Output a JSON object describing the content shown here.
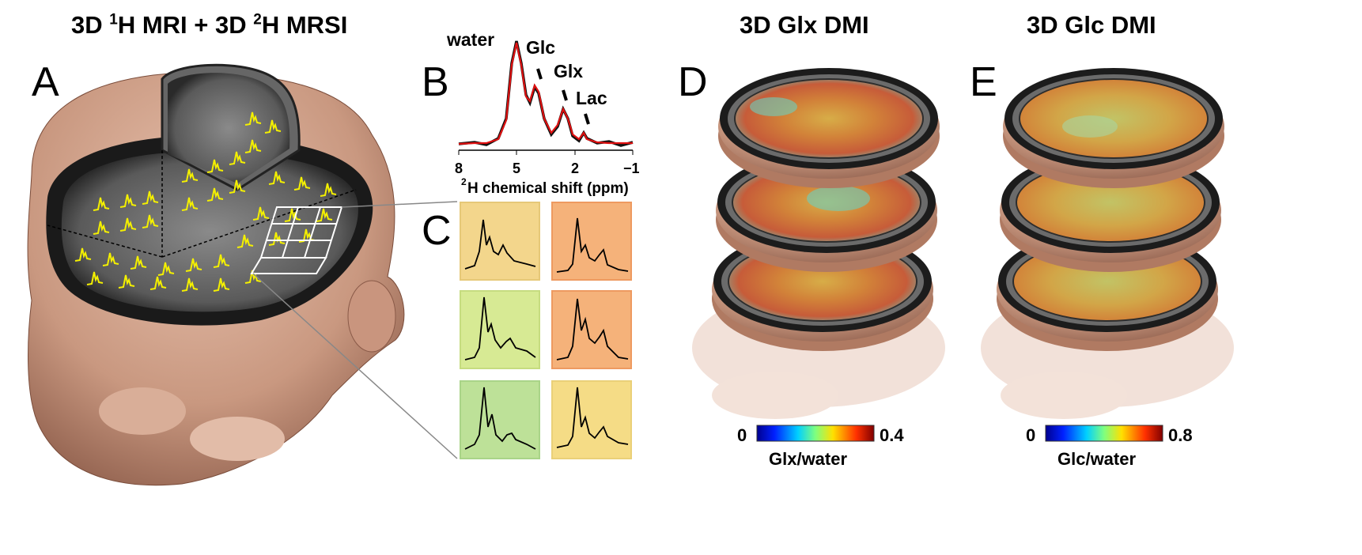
{
  "titles": {
    "a_prefix": "3D ",
    "a_sup1": "1",
    "a_mid": "H MRI + 3D ",
    "a_sup2": "2",
    "a_suffix": "H MRSI",
    "d": "3D Glx DMI",
    "e": "3D Glc DMI"
  },
  "panels": {
    "a": "A",
    "b": "B",
    "c": "C",
    "d": "D",
    "e": "E"
  },
  "spectrum": {
    "peaks": [
      "water",
      "Glc",
      "Glx",
      "Lac"
    ],
    "ticks": [
      "8",
      "5",
      "2",
      "−1"
    ],
    "xlabel_sup": "2",
    "xlabel": "H chemical shift (ppm)",
    "colors": {
      "measured": "#111111",
      "fit": "#e01010"
    }
  },
  "voxels": [
    {
      "color": "#f3d68c"
    },
    {
      "color": "#f5b27a"
    },
    {
      "color": "#d7ea94"
    },
    {
      "color": "#f5b27a"
    },
    {
      "color": "#bde198"
    },
    {
      "color": "#f5dc86"
    }
  ],
  "colorbars": {
    "d": {
      "min": "0",
      "max": "0.4",
      "label": "Glx/water"
    },
    "e": {
      "min": "0",
      "max": "0.8",
      "label": "Glc/water"
    }
  }
}
